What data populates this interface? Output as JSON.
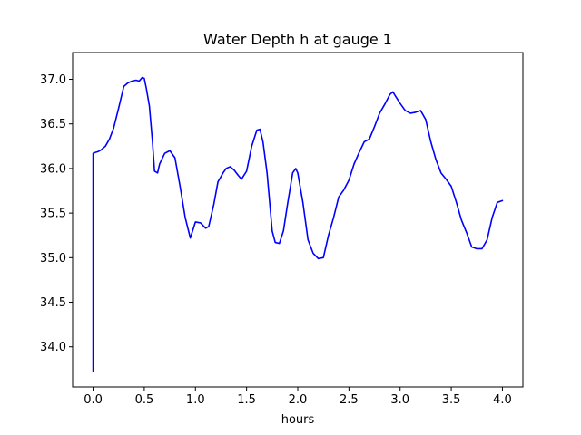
{
  "chart_data": {
    "type": "line",
    "title": "Water Depth h at gauge 1",
    "xlabel": "hours",
    "ylabel": "",
    "xlim": [
      -0.2,
      4.2
    ],
    "ylim": [
      33.55,
      37.3
    ],
    "xticks": [
      0.0,
      0.5,
      1.0,
      1.5,
      2.0,
      2.5,
      3.0,
      3.5,
      4.0
    ],
    "xtick_labels": [
      "0.0",
      "0.5",
      "1.0",
      "1.5",
      "2.0",
      "2.5",
      "3.0",
      "3.5",
      "4.0"
    ],
    "yticks": [
      34.0,
      34.5,
      35.0,
      35.5,
      36.0,
      36.5,
      37.0
    ],
    "ytick_labels": [
      "34.0",
      "34.5",
      "35.0",
      "35.5",
      "36.0",
      "36.5",
      "37.0"
    ],
    "grid": false,
    "series": [
      {
        "color": "#0000ff",
        "x": [
          0.0,
          0.0,
          0.0,
          0.02,
          0.05,
          0.08,
          0.12,
          0.16,
          0.2,
          0.25,
          0.3,
          0.34,
          0.38,
          0.42,
          0.45,
          0.48,
          0.5,
          0.52,
          0.55,
          0.58,
          0.6,
          0.63,
          0.65,
          0.7,
          0.75,
          0.8,
          0.85,
          0.9,
          0.95,
          1.0,
          1.05,
          1.1,
          1.13,
          1.18,
          1.22,
          1.27,
          1.3,
          1.34,
          1.38,
          1.4,
          1.42,
          1.45,
          1.5,
          1.55,
          1.6,
          1.63,
          1.66,
          1.7,
          1.75,
          1.78,
          1.82,
          1.86,
          1.9,
          1.95,
          1.98,
          2.0,
          2.05,
          2.1,
          2.15,
          2.2,
          2.25,
          2.3,
          2.35,
          2.4,
          2.45,
          2.5,
          2.55,
          2.6,
          2.65,
          2.7,
          2.75,
          2.8,
          2.85,
          2.9,
          2.93,
          2.95,
          3.0,
          3.05,
          3.1,
          3.15,
          3.2,
          3.25,
          3.3,
          3.35,
          3.4,
          3.45,
          3.5,
          3.55,
          3.6,
          3.65,
          3.7,
          3.75,
          3.8,
          3.85,
          3.9,
          3.95,
          4.0
        ],
        "y": [
          33.72,
          35.2,
          36.17,
          36.18,
          36.19,
          36.21,
          36.25,
          36.33,
          36.45,
          36.68,
          36.92,
          36.96,
          36.98,
          36.99,
          36.98,
          37.02,
          37.01,
          36.9,
          36.7,
          36.3,
          35.97,
          35.95,
          36.05,
          36.17,
          36.2,
          36.12,
          35.8,
          35.45,
          35.22,
          35.4,
          35.39,
          35.33,
          35.35,
          35.6,
          35.85,
          35.95,
          36.0,
          36.02,
          35.98,
          35.95,
          35.92,
          35.88,
          35.97,
          36.25,
          36.43,
          36.44,
          36.3,
          35.95,
          35.3,
          35.17,
          35.16,
          35.3,
          35.6,
          35.95,
          36.0,
          35.95,
          35.62,
          35.2,
          35.05,
          34.99,
          35.0,
          35.25,
          35.45,
          35.68,
          35.76,
          35.87,
          36.05,
          36.18,
          36.3,
          36.33,
          36.47,
          36.62,
          36.72,
          36.83,
          36.86,
          36.82,
          36.73,
          36.65,
          36.62,
          36.63,
          36.65,
          36.55,
          36.3,
          36.1,
          35.95,
          35.88,
          35.8,
          35.62,
          35.42,
          35.28,
          35.12,
          35.1,
          35.1,
          35.2,
          35.45,
          35.62,
          35.64
        ]
      }
    ]
  }
}
